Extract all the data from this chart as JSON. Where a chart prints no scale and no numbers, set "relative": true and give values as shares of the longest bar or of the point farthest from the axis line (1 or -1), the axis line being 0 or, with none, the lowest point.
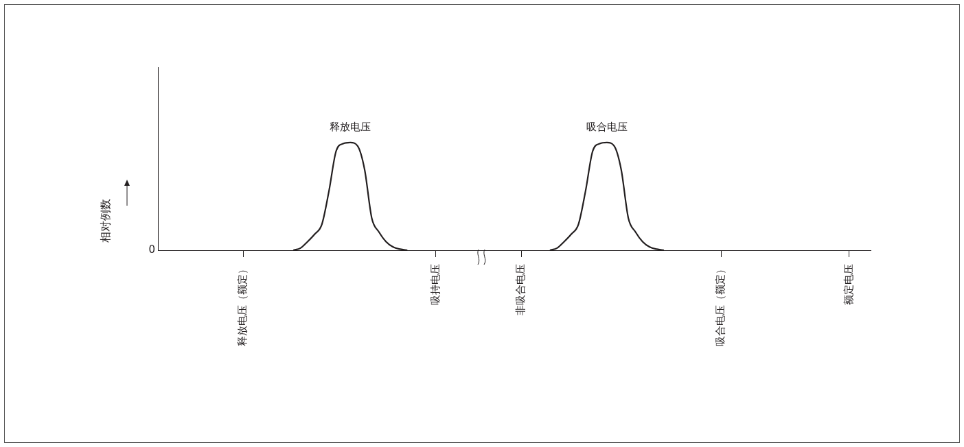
{
  "chart_data": {
    "type": "line",
    "relative": true,
    "ylabel": "相对例数",
    "categories": [
      null,
      null,
      null,
      null,
      null,
      null,
      null,
      null,
      null,
      null,
      null,
      null,
      "释放电压（额定）",
      null,
      null,
      null,
      null,
      null,
      null,
      null,
      null,
      null,
      null,
      null,
      null,
      null,
      null,
      null,
      null,
      null,
      null,
      null,
      null,
      null,
      null,
      null,
      null,
      null,
      null,
      "吸持电压",
      null,
      null,
      null,
      null,
      null,
      null,
      null,
      null,
      null,
      null,
      null,
      "非吸合电压",
      null,
      null,
      null,
      null,
      null,
      null,
      null,
      null,
      null,
      null,
      null,
      null,
      null,
      null,
      null,
      null,
      null,
      null,
      null,
      null,
      null,
      null,
      null,
      null,
      null,
      null,
      null,
      "吸合电压（额定）",
      null,
      null,
      null,
      null,
      null,
      null,
      null,
      null,
      null,
      null,
      null,
      null,
      null,
      null,
      null,
      null,
      null,
      "额定电压",
      null,
      null,
      null
    ],
    "annotations": [
      "0"
    ],
    "grid": false,
    "legend": false,
    "marker": "none",
    "line_style": "solid",
    "series": [
      {
        "name": "释放电压",
        "color": "#231f20",
        "values": [
          null,
          null,
          null,
          null,
          null,
          null,
          null,
          null,
          null,
          null,
          null,
          null,
          null,
          null,
          null,
          null,
          null,
          null,
          null,
          0,
          0.02,
          0.08,
          0.15,
          0.24,
          0.55,
          0.92,
          0.99,
          1,
          0.97,
          0.75,
          0.3,
          0.17,
          0.08,
          0.03,
          0.01,
          0,
          null,
          null,
          null,
          null,
          null,
          null,
          null,
          null,
          null,
          null,
          null,
          null,
          null,
          null,
          null,
          null,
          null,
          null,
          null,
          null,
          null,
          null,
          null,
          null,
          null,
          null,
          null,
          null,
          null,
          null,
          null,
          null,
          null,
          null,
          null,
          null,
          null,
          null,
          null,
          null,
          null,
          null,
          null,
          null,
          null,
          null,
          null,
          null,
          null,
          null,
          null,
          null,
          null,
          null,
          null,
          null,
          null,
          null,
          null,
          null,
          null,
          null,
          null,
          null,
          null
        ]
      },
      {
        "name": "吸合电压",
        "color": "#231f20",
        "values": [
          null,
          null,
          null,
          null,
          null,
          null,
          null,
          null,
          null,
          null,
          null,
          null,
          null,
          null,
          null,
          null,
          null,
          null,
          null,
          null,
          null,
          null,
          null,
          null,
          null,
          null,
          null,
          null,
          null,
          null,
          null,
          null,
          null,
          null,
          null,
          null,
          null,
          null,
          null,
          null,
          null,
          null,
          null,
          null,
          null,
          null,
          null,
          null,
          null,
          null,
          null,
          null,
          null,
          null,
          null,
          0,
          0.02,
          0.08,
          0.15,
          0.24,
          0.55,
          0.92,
          0.99,
          1,
          0.97,
          0.75,
          0.3,
          0.17,
          0.08,
          0.03,
          0.01,
          0,
          null,
          null,
          null,
          null,
          null,
          null,
          null,
          null,
          null,
          null,
          null,
          null,
          null,
          null,
          null,
          null,
          null,
          null,
          null,
          null,
          null,
          null,
          null,
          null,
          null,
          null,
          null,
          null,
          null
        ]
      }
    ]
  }
}
